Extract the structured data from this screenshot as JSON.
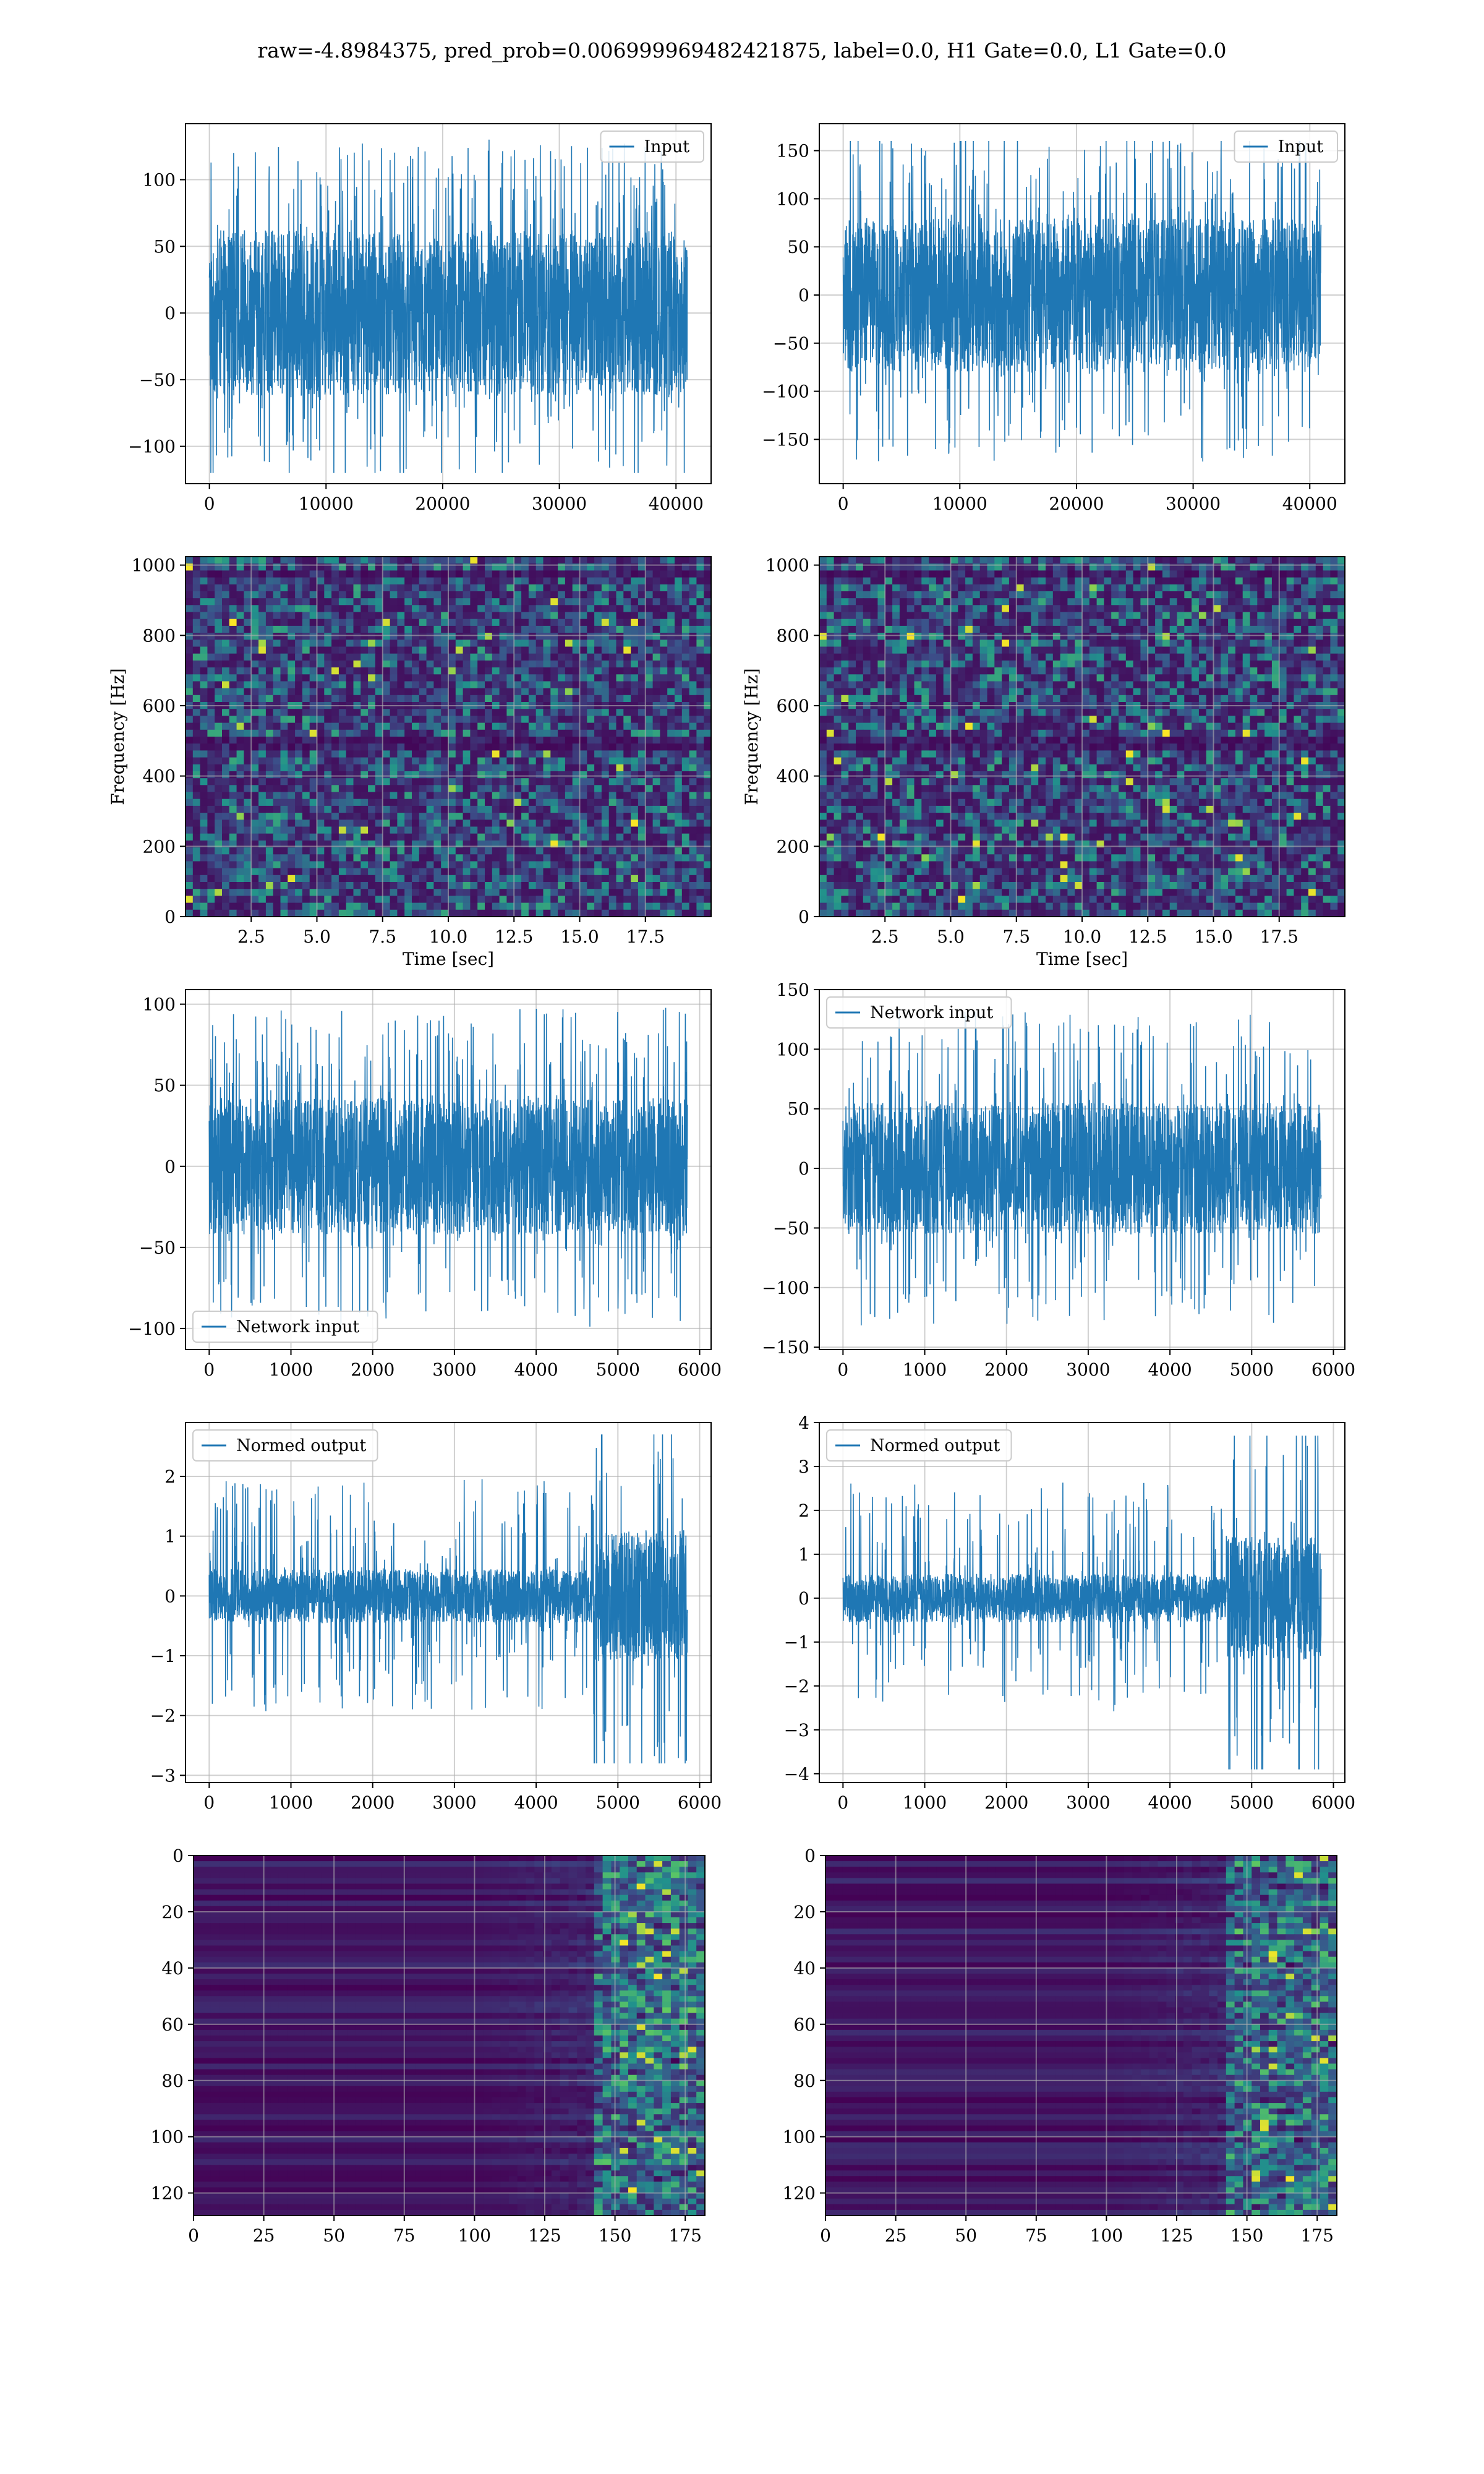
{
  "figure": {
    "suptitle": "raw=-4.8984375, pred_prob=0.006999969482421875, label=0.0, H1 Gate=0.0, L1 Gate=0.0"
  },
  "colors": {
    "line": "#1f77b4",
    "grid": "#b0b0b0",
    "viridis_dark": "#440154",
    "viridis_mid": "#21918c",
    "viridis_bright": "#fde725"
  },
  "chart_data": [
    {
      "id": "h1-input",
      "type": "line",
      "title": "",
      "xlabel": "",
      "ylabel": "",
      "legend": "top-right",
      "series": [
        {
          "name": "Input"
        }
      ],
      "x_range": [
        0,
        40960
      ],
      "xlim": [
        -2048,
        43008
      ],
      "ylim": [
        -128,
        142
      ],
      "xticks": [
        0,
        10000,
        20000,
        30000,
        40000
      ],
      "yticks": [
        -100,
        -50,
        0,
        50,
        100
      ],
      "envelope": {
        "core": 62,
        "peak_max": 131,
        "peak_min": -120
      }
    },
    {
      "id": "l1-input",
      "type": "line",
      "title": "",
      "xlabel": "",
      "ylabel": "",
      "legend": "top-right",
      "series": [
        {
          "name": "Input"
        }
      ],
      "x_range": [
        0,
        40960
      ],
      "xlim": [
        -2048,
        43008
      ],
      "ylim": [
        -196,
        178
      ],
      "xticks": [
        0,
        10000,
        20000,
        30000,
        40000
      ],
      "yticks": [
        -150,
        -100,
        -50,
        0,
        50,
        100,
        150
      ],
      "envelope": {
        "core": 80,
        "peak_max": 160,
        "peak_min": -179
      }
    },
    {
      "id": "h1-spectrogram",
      "type": "heatmap",
      "title": "",
      "xlabel": "Time [sec]",
      "ylabel": "Frequency [Hz]",
      "xlim": [
        0,
        20
      ],
      "ylim": [
        0,
        1024
      ],
      "xticks": [
        2.5,
        5.0,
        7.5,
        10.0,
        12.5,
        15.0,
        17.5
      ],
      "yticks": [
        0,
        200,
        400,
        600,
        800,
        1000
      ],
      "colormap": "viridis"
    },
    {
      "id": "l1-spectrogram",
      "type": "heatmap",
      "title": "",
      "xlabel": "Time [sec]",
      "ylabel": "Frequency [Hz]",
      "xlim": [
        0,
        20
      ],
      "ylim": [
        0,
        1024
      ],
      "xticks": [
        2.5,
        5.0,
        7.5,
        10.0,
        12.5,
        15.0,
        17.5
      ],
      "yticks": [
        0,
        200,
        400,
        600,
        800,
        1000
      ],
      "colormap": "viridis"
    },
    {
      "id": "h1-network-input",
      "type": "line",
      "title": "",
      "xlabel": "",
      "ylabel": "",
      "legend": "bottom-left",
      "series": [
        {
          "name": "Network input"
        }
      ],
      "x_range": [
        0,
        5850
      ],
      "xlim": [
        -290,
        6140
      ],
      "ylim": [
        -113,
        109
      ],
      "xticks": [
        0,
        1000,
        2000,
        3000,
        4000,
        5000,
        6000
      ],
      "yticks": [
        -100,
        -50,
        0,
        50,
        100
      ],
      "envelope": {
        "core": 42,
        "peak_max": 98,
        "peak_min": -110
      }
    },
    {
      "id": "l1-network-input",
      "type": "line",
      "title": "",
      "xlabel": "",
      "ylabel": "",
      "legend": "top-left",
      "series": [
        {
          "name": "Network input"
        }
      ],
      "x_range": [
        0,
        5850
      ],
      "xlim": [
        -290,
        6140
      ],
      "ylim": [
        -152,
        150
      ],
      "xticks": [
        0,
        1000,
        2000,
        3000,
        4000,
        5000,
        6000
      ],
      "yticks": [
        -150,
        -100,
        -50,
        0,
        50,
        100,
        150
      ],
      "envelope": {
        "core": 55,
        "peak_max": 140,
        "peak_min": -140
      }
    },
    {
      "id": "h1-normed-output",
      "type": "line",
      "title": "",
      "xlabel": "",
      "ylabel": "",
      "legend": "top-left",
      "series": [
        {
          "name": "Normed output"
        }
      ],
      "x_range": [
        0,
        5850
      ],
      "xlim": [
        -290,
        6140
      ],
      "ylim": [
        -3.12,
        2.9
      ],
      "xticks": [
        0,
        1000,
        2000,
        3000,
        4000,
        5000,
        6000
      ],
      "yticks": [
        -3,
        -2,
        -1,
        0,
        1,
        2
      ],
      "envelope": {
        "core": 0.45,
        "peak_max": 2.7,
        "peak_min": -2.8,
        "burst_start": 4700,
        "burst_core": 1.1
      }
    },
    {
      "id": "l1-normed-output",
      "type": "line",
      "title": "",
      "xlabel": "",
      "ylabel": "",
      "legend": "top-left",
      "series": [
        {
          "name": "Normed output"
        }
      ],
      "x_range": [
        0,
        5850
      ],
      "xlim": [
        -290,
        6140
      ],
      "ylim": [
        -4.2,
        4.0
      ],
      "xticks": [
        0,
        1000,
        2000,
        3000,
        4000,
        5000,
        6000
      ],
      "yticks": [
        -4,
        -3,
        -2,
        -1,
        0,
        1,
        2,
        3,
        4
      ],
      "envelope": {
        "core": 0.55,
        "peak_max": 3.7,
        "peak_min": -3.9,
        "burst_start": 4700,
        "burst_core": 1.4
      }
    },
    {
      "id": "h1-feature-map",
      "type": "heatmap",
      "title": "",
      "xlabel": "",
      "ylabel": "",
      "xlim": [
        0,
        182
      ],
      "ylim": [
        128,
        0
      ],
      "xticks": [
        0,
        25,
        50,
        75,
        100,
        125,
        150,
        175
      ],
      "yticks": [
        0,
        20,
        40,
        60,
        80,
        100,
        120
      ],
      "colormap": "viridis"
    },
    {
      "id": "l1-feature-map",
      "type": "heatmap",
      "title": "",
      "xlabel": "",
      "ylabel": "",
      "xlim": [
        0,
        182
      ],
      "ylim": [
        128,
        0
      ],
      "xticks": [
        0,
        25,
        50,
        75,
        100,
        125,
        150,
        175
      ],
      "yticks": [
        0,
        20,
        40,
        60,
        80,
        100,
        120
      ],
      "colormap": "viridis"
    }
  ]
}
